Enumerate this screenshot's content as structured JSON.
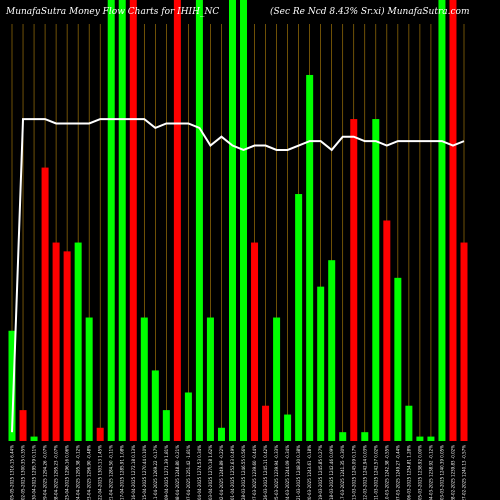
{
  "chart_data": {
    "type": "bar",
    "title_left": "MunafaSutra  Money Flow  Charts for IHIH_NC",
    "title_right": "(Sec Re   Ncd 8.43% Sr.xi) MunafaSutra.com",
    "colors": {
      "background": "#000000",
      "inflow": "#00ff00",
      "outflow": "#ff0000",
      "grid": "#b8860b",
      "line": "#ffffff"
    },
    "grid": true,
    "ylim": [
      0,
      100
    ],
    "categories": [
      "05-05-2025 1316.15 6.44%",
      "02-05-2025 1300.35 0.35%",
      "30-04-2025 1295.79 0.11%",
      "29-04-2025 1294.26 -0.07%",
      "28-04-2025 1295.23 -0.07%",
      "25-04-2025 1296.16 0.06%",
      "24-04-2025 1295.38 -0.12%",
      "23-04-2025 1296.90 -0.48%",
      "22-04-2025 1303.13 1.45%",
      "21-04-2025 1284.50 -0.11%",
      "17-04-2025 1285.91 1.08%",
      "16-04-2025 1272.18 0.13%",
      "15-04-2025 1270.44 0.10%",
      "11-04-2025 1269.22 -0.17%",
      "09-04-2025 1271.39 1.81%",
      "08-04-2025 1248.80 -0.21%",
      "07-04-2025 1251.42 -1.81%",
      "04-04-2025 1274.53 0.34%",
      "03-04-2025 1270.18 1.62%",
      "02-04-2025 1249.89 -0.22%",
      "01-04-2025 1252.63 0.49%",
      "28-03-2025 1246.55 0.56%",
      "27-03-2025 1239.60 -0.44%",
      "26-03-2025 1245.11 0.42%",
      "25-03-2025 1239.94 -0.33%",
      "24-03-2025 1244.09 -0.34%",
      "21-03-2025 1248.30 0.38%",
      "20-03-2025 1243.61 -0.18%",
      "19-03-2025 1245.85 0.27%",
      "18-03-2025 1242.46 0.09%",
      "17-03-2025 1241.35 -0.30%",
      "13-03-2025 1245.09 0.17%",
      "12-03-2025 1242.94 0.03%",
      "11-03-2025 1242.57 0.02%",
      "10-03-2025 1242.38 -0.55%",
      "07-03-2025 1249.27 -0.44%",
      "06-03-2025 1254.81 1.28%",
      "05-03-2025 1238.92 0.00%",
      "04-03-2025 1238.92 -0.12%",
      "03-03-2025 1240.39 0.05%",
      "28-02-2025 1239.83 -0.02%",
      "27-02-2025 1240.13 -0.57%"
    ],
    "direction": [
      "up",
      "down",
      "up",
      "down",
      "down",
      "down",
      "up",
      "up",
      "down",
      "up",
      "up",
      "down",
      "up",
      "up",
      "up",
      "down",
      "up",
      "up",
      "up",
      "up",
      "up",
      "up",
      "down",
      "down",
      "up",
      "up",
      "up",
      "up",
      "up",
      "up",
      "up",
      "down",
      "up",
      "up",
      "down",
      "up",
      "up",
      "up",
      "up",
      "up",
      "down",
      "down"
    ],
    "volume": [
      25,
      7,
      1,
      62,
      45,
      43,
      45,
      28,
      3,
      100,
      100,
      100,
      28,
      16,
      7,
      100,
      11,
      100,
      28,
      3,
      100,
      100,
      45,
      8,
      28,
      6,
      56,
      83,
      35,
      41,
      2,
      73,
      2,
      73,
      50,
      37,
      8,
      1,
      1,
      100,
      100,
      45
    ],
    "price_line": [
      2,
      73,
      73,
      73,
      72,
      72,
      72,
      72,
      73,
      73,
      73,
      73,
      73,
      71,
      72,
      72,
      72,
      71,
      67,
      69,
      67,
      66,
      67,
      67,
      66,
      66,
      67,
      68,
      68,
      66,
      69,
      69,
      68,
      68,
      67,
      68,
      68,
      68,
      68,
      68,
      67,
      68
    ]
  }
}
